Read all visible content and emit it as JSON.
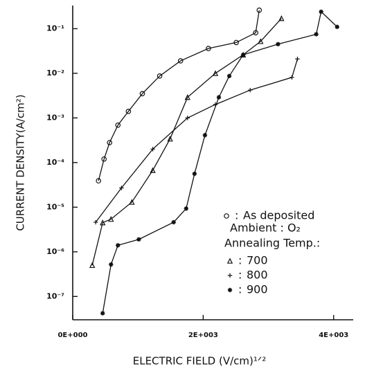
{
  "chart_data": {
    "type": "scatter",
    "xlabel": "ELECTRIC FIELD  (V/cm)¹ᐟ²",
    "ylabel": "CURRENT DENSITY(A/cm²)",
    "xlim": [
      0,
      4300
    ],
    "ylim": [
      3e-08,
      0.33
    ],
    "log_y": true,
    "xticks": [
      {
        "value": 0,
        "label": "0E+000"
      },
      {
        "value": 2000,
        "label": "2E+003"
      },
      {
        "value": 4000,
        "label": "4E+003"
      }
    ],
    "yticks": [
      {
        "value": 1e-07,
        "label": "10⁻⁷"
      },
      {
        "value": 1e-06,
        "label": "10⁻⁶"
      },
      {
        "value": 1e-05,
        "label": "10⁻⁵"
      },
      {
        "value": 0.0001,
        "label": "10⁻⁴"
      },
      {
        "value": 0.001,
        "label": "10⁻³"
      },
      {
        "value": 0.01,
        "label": "10⁻²"
      },
      {
        "value": 0.1,
        "label": "10⁻¹"
      }
    ],
    "annotations": [
      "Ambient : O₂",
      "Annealing Temp.:"
    ],
    "series": [
      {
        "name": "As deposited",
        "marker": "circle",
        "color": "#111",
        "x": [
          395,
          480,
          565,
          693,
          853,
          1067,
          1333,
          1653,
          2080,
          2507,
          2805,
          2859
        ],
        "values": [
          3.9e-05,
          0.00012,
          0.00028,
          0.00069,
          0.0014,
          0.0035,
          0.0087,
          0.019,
          0.036,
          0.049,
          0.081,
          0.26
        ]
      },
      {
        "name": "700",
        "marker": "triangle",
        "color": "#111",
        "x": [
          299,
          459,
          587,
          907,
          1227,
          1493,
          1760,
          2187,
          2613,
          2880,
          3200
        ],
        "values": [
          5e-07,
          4.5e-06,
          5.4e-06,
          1.3e-05,
          6.7e-05,
          0.00034,
          0.0029,
          0.01,
          0.026,
          0.052,
          0.17
        ]
      },
      {
        "name": "800",
        "marker": "plus",
        "color": "#111",
        "x": [
          352,
          747,
          1227,
          1760,
          2187,
          2720,
          3360,
          3445
        ],
        "values": [
          4.6e-06,
          2.7e-05,
          0.0002,
          0.001,
          0.002,
          0.0042,
          0.0081,
          0.021
        ]
      },
      {
        "name": "900",
        "marker": "star",
        "color": "#111",
        "x": [
          459,
          587,
          693,
          1013,
          1547,
          1739,
          1867,
          2027,
          2240,
          2400,
          2613,
          3147,
          3733,
          3808,
          4053
        ],
        "values": [
          4.2e-08,
          5.2e-07,
          1.4e-06,
          1.9e-06,
          4.6e-06,
          9.3e-06,
          5.6e-05,
          0.00041,
          0.0029,
          0.0087,
          0.026,
          0.045,
          0.075,
          0.24,
          0.11
        ]
      }
    ]
  }
}
